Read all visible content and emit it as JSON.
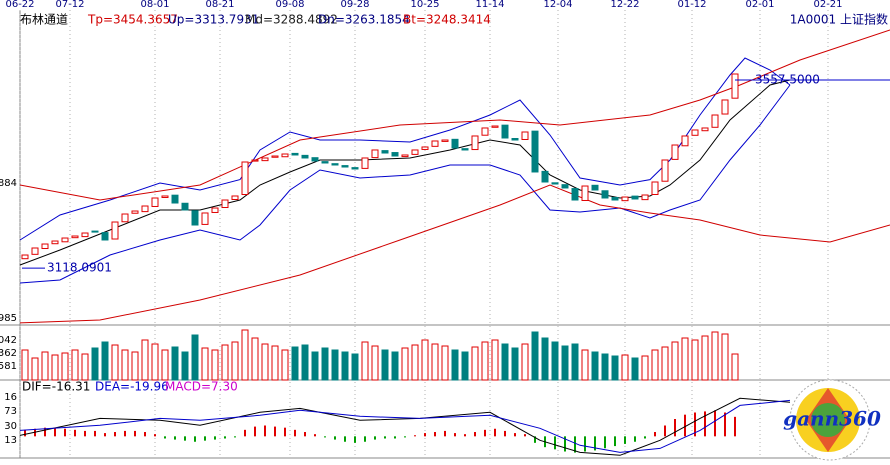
{
  "header": {
    "items": [
      {
        "text": "布林通道",
        "color": "#000000"
      },
      {
        "text": "Tp=3454.3657",
        "color": "#d00000"
      },
      {
        "text": "Up=3313.7931",
        "color": "#000080"
      },
      {
        "text": "Md=3288.4892",
        "color": "#202020"
      },
      {
        "text": "Dn=3263.1854",
        "color": "#000080"
      },
      {
        "text": "Bt=3248.3414",
        "color": "#d00000"
      }
    ],
    "symbol": "1A0001 上证指数"
  },
  "logo": "gann360",
  "chart_data": [
    {
      "type": "candlestick",
      "xlim": [
        -0.5,
        86.5
      ],
      "xticks": [
        {
          "value": -0.5,
          "label": "06-22"
        },
        {
          "value": 4.5,
          "label": "07-12"
        },
        {
          "value": 13,
          "label": "08-01"
        },
        {
          "value": 19.5,
          "label": "08-21"
        },
        {
          "value": 26.5,
          "label": "09-08"
        },
        {
          "value": 33,
          "label": "09-28"
        },
        {
          "value": 40,
          "label": "10-25"
        },
        {
          "value": 46.5,
          "label": "11-14"
        },
        {
          "value": 53.3,
          "label": "12-04"
        },
        {
          "value": 60,
          "label": "12-22"
        },
        {
          "value": 66.7,
          "label": "01-12"
        },
        {
          "value": 73.5,
          "label": "02-01"
        },
        {
          "value": 80.3,
          "label": "02-21"
        }
      ],
      "ylim": [
        2985.1,
        3674.3
      ],
      "axis_fragments": [
        "884",
        "985"
      ],
      "up_color": "#e00000",
      "down_color": "#008080",
      "open": [
        3140.0,
        3150.2,
        3163.8,
        3175.0,
        3179.5,
        3189.1,
        3191.6,
        3204.5,
        3201.0,
        3186.0,
        3226.3,
        3246.2,
        3250.0,
        3262.0,
        3283.0,
        3288.4,
        3269.5,
        3252.0,
        3220.1,
        3248.0,
        3259.6,
        3278.3,
        3290.0,
        3368.0,
        3369.1,
        3377.0,
        3378.2,
        3386.0,
        3381.4,
        3376.0,
        3366.8,
        3362.0,
        3357.5,
        3352.8,
        3351.0,
        3376.2,
        3392.5,
        3388.0,
        3378.6,
        3383.7,
        3395.2,
        3402.5,
        3414.0,
        3418.9,
        3397.1,
        3395.0,
        3428.5,
        3447.0,
        3452.0,
        3420.8,
        3418.5,
        3438.0,
        3344.0,
        3317.3,
        3313.0,
        3303.9,
        3276.0,
        3311.5,
        3298.7,
        3283.0,
        3275.6,
        3286.2,
        3278.0,
        3290.0,
        3321.0,
        3372.0,
        3403.8,
        3428.3,
        3439.0,
        3447.0,
        3478.0,
        3515.0
      ],
      "close": [
        3148.6,
        3165.0,
        3174.3,
        3181.3,
        3188.3,
        3193.0,
        3200.0,
        3202.4,
        3183.7,
        3225.7,
        3244.4,
        3251.4,
        3263.1,
        3281.8,
        3286.5,
        3270.1,
        3253.8,
        3218.7,
        3246.8,
        3258.4,
        3277.1,
        3286.5,
        3365.9,
        3370.6,
        3375.3,
        3379.9,
        3384.6,
        3382.3,
        3375.3,
        3368.3,
        3363.6,
        3358.9,
        3354.2,
        3349.6,
        3375.3,
        3394.0,
        3386.9,
        3379.9,
        3382.3,
        3394.0,
        3401.0,
        3415.0,
        3417.3,
        3398.6,
        3394.0,
        3426.7,
        3445.4,
        3450.0,
        3422.0,
        3417.3,
        3436.0,
        3342.6,
        3319.2,
        3314.5,
        3305.2,
        3277.1,
        3309.8,
        3300.5,
        3281.8,
        3277.1,
        3284.1,
        3279.5,
        3288.8,
        3319.2,
        3370.6,
        3405.6,
        3426.7,
        3440.7,
        3445.4,
        3475.7,
        3510.8,
        3571.5
      ],
      "overlays": [
        {
          "color": "#0000cc",
          "x": [
            -0.5,
            3.5,
            8.5,
            13.5,
            17.5,
            21.5,
            23.5,
            26.5,
            29.5,
            33.5,
            38.5,
            42.5,
            46.5,
            49.5,
            52.5,
            55.5,
            59.5,
            62.5,
            64.5,
            67.5,
            70.5,
            72,
            74.5,
            76.5
          ],
          "values": [
            3183.7,
            3242.1,
            3277.1,
            3316.9,
            3300.5,
            3324.9,
            3394.0,
            3436.0,
            3417.3,
            3417.3,
            3412.6,
            3440.7,
            3475.7,
            3510.8,
            3429.0,
            3328.5,
            3312.2,
            3324.9,
            3370.6,
            3475.7,
            3569.2,
            3608.9,
            3580.9,
            3545.8
          ]
        },
        {
          "color": "#000000",
          "x": [
            -0.5,
            3.5,
            8.5,
            13.5,
            17.5,
            21.5,
            23.5,
            26.5,
            29.5,
            33.5,
            38.5,
            42.5,
            46.5,
            49.5,
            52.5,
            55.5,
            59.5,
            62.5,
            64.5,
            67.5,
            70.5,
            74.5,
            76.5
          ],
          "values": [
            3125.3,
            3160.3,
            3207.0,
            3253.8,
            3253.8,
            3277.1,
            3312.2,
            3342.6,
            3370.6,
            3370.6,
            3375.3,
            3394.0,
            3417.3,
            3405.6,
            3335.5,
            3300.5,
            3281.8,
            3286.5,
            3312.2,
            3370.6,
            3464.0,
            3545.8,
            3557.5
          ]
        },
        {
          "color": "#0000cc",
          "x": [
            -0.5,
            3.5,
            8.5,
            13.5,
            17.5,
            21.5,
            23.5,
            26.5,
            29.5,
            33.5,
            38.5,
            42.5,
            46.5,
            49.5,
            52.5,
            55.5,
            59.5,
            62.5,
            64.5,
            67.5,
            70.5,
            73.5,
            76.5
          ],
          "values": [
            3083.2,
            3090.2,
            3148.6,
            3183.7,
            3207.0,
            3183.7,
            3218.7,
            3300.5,
            3347.2,
            3328.5,
            3335.5,
            3358.9,
            3358.9,
            3335.5,
            3253.8,
            3249.1,
            3258.4,
            3235.1,
            3253.8,
            3277.1,
            3370.6,
            3452.4,
            3545.8
          ]
        },
        {
          "color": "#d00000",
          "x": [
            -0.5,
            7.5,
            17.5,
            27.5,
            37.5,
            47.5,
            53.5,
            62.5,
            67.5,
            71.5,
            77.5,
            86.5
          ],
          "values": [
            3312.2,
            3277.1,
            3312.2,
            3417.3,
            3452.4,
            3464.0,
            3452.4,
            3475.7,
            3510.8,
            3545.8,
            3604.2,
            3674.3
          ]
        },
        {
          "color": "#d00000",
          "x": [
            -0.5,
            7.5,
            17.5,
            27.5,
            37.5,
            47.5,
            52.5,
            57.5,
            62.5,
            67.5,
            73.5,
            80.5,
            86.5
          ],
          "values": [
            2990.0,
            2996.8,
            3043.5,
            3101.9,
            3183.7,
            3265.5,
            3312.2,
            3265.5,
            3246.8,
            3230.4,
            3195.4,
            3179.0,
            3218.7
          ]
        }
      ],
      "annotations": [
        {
          "value": 3118.0901,
          "label": "3118.0901",
          "x": 0
        },
        {
          "value": 3557.5,
          "label": "3557.5000",
          "x": 71
        }
      ]
    },
    {
      "type": "bar",
      "ylim": [
        0,
        55
      ],
      "axis_fragments": [
        "042",
        "362",
        "581"
      ],
      "values": [
        30,
        22,
        28,
        25,
        27,
        30,
        26,
        32,
        38,
        35,
        30,
        28,
        40,
        36,
        30,
        33,
        28,
        45,
        32,
        30,
        35,
        38,
        50,
        42,
        36,
        34,
        30,
        33,
        35,
        28,
        32,
        30,
        28,
        26,
        38,
        34,
        30,
        28,
        32,
        35,
        40,
        36,
        34,
        30,
        28,
        33,
        38,
        40,
        36,
        32,
        36,
        48,
        42,
        38,
        34,
        36,
        30,
        28,
        26,
        24,
        25,
        22,
        24,
        30,
        33,
        38,
        42,
        40,
        44,
        48,
        46,
        26
      ]
    },
    {
      "type": "macd",
      "ylim": [
        -20,
        40
      ],
      "axis_fragments": [
        "16",
        "73",
        "30",
        "13"
      ],
      "texts": [
        {
          "text": "DIF=-16.31",
          "color": "#000000"
        },
        {
          "text": "DEA=-19.96",
          "color": "#0000cc"
        },
        {
          "text": "MACD=7.30",
          "color": "#cc00cc"
        }
      ],
      "up_color": "#e00000",
      "down_color": "#00a000",
      "histogram": [
        6,
        7,
        8,
        8,
        7,
        6,
        5,
        5,
        3,
        4,
        5,
        5,
        4,
        2,
        -2,
        -3,
        -4,
        -5,
        -4,
        -3,
        -2,
        -1,
        6,
        9,
        10,
        9,
        8,
        6,
        4,
        2,
        -1,
        -3,
        -5,
        -6,
        -5,
        -3,
        -2,
        -2,
        -1,
        1,
        3,
        4,
        5,
        3,
        2,
        4,
        6,
        7,
        5,
        3,
        2,
        -6,
        -10,
        -12,
        -14,
        -15,
        -14,
        -13,
        -11,
        -9,
        -7,
        -5,
        -2,
        4,
        10,
        16,
        20,
        22,
        23,
        24,
        22,
        18
      ],
      "lines": [
        {
          "color": "#000000",
          "x": [
            -0.5,
            7.5,
            13.5,
            17.5,
            23.5,
            27.5,
            33.5,
            39.5,
            46.5,
            51.5,
            55.5,
            59.5,
            63.5,
            67.5,
            71.5,
            76.5
          ],
          "values": [
            0.9,
            16.6,
            14.8,
            10.2,
            22.2,
            25.8,
            14.8,
            16.6,
            22.2,
            -3.7,
            -14.8,
            -17.5,
            -3.7,
            16.6,
            35.1,
            31.4
          ]
        },
        {
          "color": "#0000cc",
          "x": [
            -0.5,
            7.5,
            13.5,
            17.5,
            23.5,
            27.5,
            33.5,
            39.5,
            46.5,
            51.5,
            55.5,
            59.5,
            63.5,
            67.5,
            71.5,
            76.5
          ],
          "values": [
            5.5,
            10.2,
            16.6,
            14.8,
            19.4,
            24.0,
            18.5,
            16.6,
            19.4,
            7.4,
            -8.3,
            -14.8,
            -11.1,
            5.5,
            28.6,
            33.2
          ]
        }
      ]
    }
  ]
}
